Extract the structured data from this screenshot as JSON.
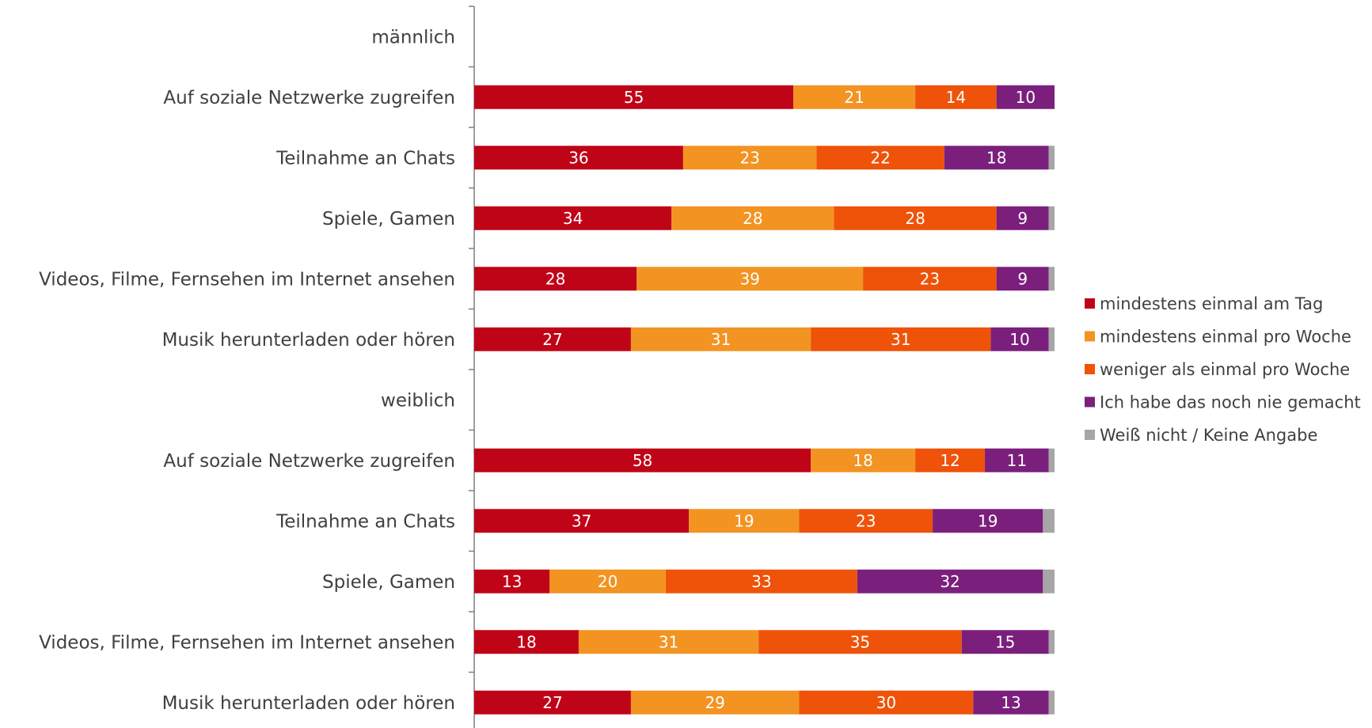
{
  "chart_data": {
    "type": "bar",
    "orientation": "horizontal",
    "stacked": true,
    "xlim": [
      0,
      100
    ],
    "grid": false,
    "legend_position": "right",
    "categories": [
      "männlich",
      "Auf soziale Netzwerke zugreifen",
      "Teilnahme an Chats",
      "Spiele, Gamen",
      "Videos, Filme, Fernsehen im Internet ansehen",
      "Musik herunterladen oder hören",
      "weiblich",
      "Auf soziale Netzwerke zugreifen",
      "Teilnahme an Chats",
      "Spiele, Gamen",
      "Videos, Filme, Fernsehen im Internet ansehen",
      "Musik herunterladen oder hören"
    ],
    "series": [
      {
        "name": "mindestens einmal am Tag",
        "color": "#C00418",
        "values": [
          null,
          55,
          36,
          34,
          28,
          27,
          null,
          58,
          37,
          13,
          18,
          27
        ]
      },
      {
        "name": "mindestens einmal pro Woche",
        "color": "#F39322",
        "values": [
          null,
          21,
          23,
          28,
          39,
          31,
          null,
          18,
          19,
          20,
          31,
          29
        ]
      },
      {
        "name": "weniger als einmal pro Woche",
        "color": "#EE5309",
        "values": [
          null,
          14,
          22,
          28,
          23,
          31,
          null,
          12,
          23,
          33,
          35,
          30
        ]
      },
      {
        "name": "Ich habe das noch nie gemacht",
        "color": "#7B1F7D",
        "values": [
          null,
          10,
          18,
          9,
          9,
          10,
          null,
          11,
          19,
          32,
          15,
          13
        ]
      },
      {
        "name": "Weiß nicht / Keine Angabe",
        "color": "#A6A6A6",
        "values": [
          null,
          0,
          1,
          1,
          1,
          1,
          null,
          1,
          2,
          2,
          1,
          1
        ]
      }
    ]
  }
}
